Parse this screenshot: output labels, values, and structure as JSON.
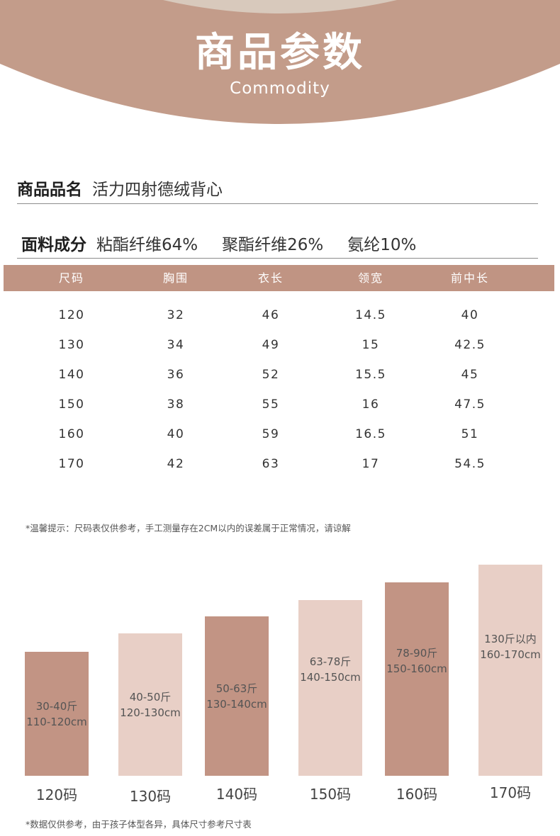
{
  "header": {
    "title": "商品参数",
    "subtitle": "Commodity"
  },
  "product": {
    "name_label": "商品品名",
    "name_value": "活力四射德绒背心",
    "fabric_label": "面料成分",
    "fabric_values": [
      "粘酯纤维64%",
      "聚酯纤维26%",
      "氨纶10%"
    ]
  },
  "size_table": {
    "columns": [
      "尺码",
      "胸围",
      "衣长",
      "领宽",
      "前中长"
    ],
    "rows": [
      [
        "120",
        "32",
        "46",
        "14.5",
        "40"
      ],
      [
        "130",
        "34",
        "49",
        "15",
        "42.5"
      ],
      [
        "140",
        "36",
        "52",
        "15.5",
        "45"
      ],
      [
        "150",
        "38",
        "55",
        "16",
        "47.5"
      ],
      [
        "160",
        "40",
        "59",
        "16.5",
        "51"
      ],
      [
        "170",
        "42",
        "63",
        "17",
        "54.5"
      ]
    ]
  },
  "notes": {
    "table_tip": "*温馨提示：尺码表仅供参考，手工测量存在2CM以内的误差属于正常情况，请谅解",
    "chart_tip": "*数据仅供参考，由于孩子体型各异，具体尺寸参考尺寸表"
  },
  "colors": {
    "header": "#c39c8a",
    "header_top": "#d8c9bc",
    "table_header": "#c09483",
    "bar_dark": "#c29484",
    "bar_light": "#e8cfc6"
  },
  "size_guide": [
    {
      "size": "120码",
      "weight": "30-40斤",
      "height": "110-120cm",
      "tone": "dark"
    },
    {
      "size": "130码",
      "weight": "40-50斤",
      "height": "120-130cm",
      "tone": "light"
    },
    {
      "size": "140码",
      "weight": "50-63斤",
      "height": "130-140cm",
      "tone": "dark"
    },
    {
      "size": "150码",
      "weight": "63-78斤",
      "height": "140-150cm",
      "tone": "light"
    },
    {
      "size": "160码",
      "weight": "78-90斤",
      "height": "150-160cm",
      "tone": "dark"
    },
    {
      "size": "170码",
      "weight": "130斤以内",
      "height": "160-170cm",
      "tone": "light"
    }
  ]
}
